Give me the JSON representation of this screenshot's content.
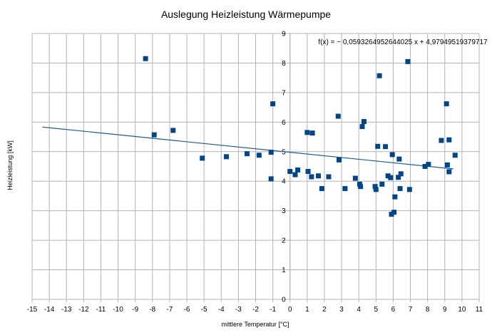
{
  "chart_data": {
    "type": "scatter",
    "title": "Auslegung Heizleistung Wärmepumpe",
    "xlabel": "mittlere Temperatur [°C]",
    "ylabel": "Heizleistung [kW]",
    "xlim": [
      -15,
      11
    ],
    "ylim": [
      0,
      9
    ],
    "grid": true,
    "x_ticks": [
      -15,
      -14,
      -13,
      -12,
      -11,
      -10,
      -9,
      -8,
      -7,
      -6,
      -5,
      -4,
      -3,
      -2,
      -1,
      0,
      1,
      2,
      3,
      4,
      5,
      6,
      7,
      8,
      9,
      10,
      11
    ],
    "y_ticks": [
      0,
      1,
      2,
      3,
      4,
      5,
      6,
      7,
      8,
      9
    ],
    "trendline": {
      "label": "f(x) = − 0,0593264952644025 x + 4,97949519379717",
      "slope": -0.0593264952644025,
      "intercept": 4.97949519379717,
      "x_range": [
        -14.4,
        9.5
      ]
    },
    "series": [
      {
        "name": "Heizleistung",
        "points": [
          [
            -8.4,
            8.15
          ],
          [
            -7.9,
            5.57
          ],
          [
            -6.8,
            5.72
          ],
          [
            -5.1,
            4.78
          ],
          [
            -3.7,
            4.83
          ],
          [
            -2.5,
            4.93
          ],
          [
            -1.8,
            4.88
          ],
          [
            -1.1,
            4.98
          ],
          [
            -1.1,
            4.08
          ],
          [
            -1.0,
            6.62
          ],
          [
            0.0,
            4.33
          ],
          [
            0.3,
            4.22
          ],
          [
            0.45,
            4.38
          ],
          [
            1.0,
            5.65
          ],
          [
            1.05,
            4.33
          ],
          [
            1.25,
            4.15
          ],
          [
            1.3,
            5.63
          ],
          [
            1.65,
            4.18
          ],
          [
            1.85,
            3.75
          ],
          [
            2.25,
            4.15
          ],
          [
            2.8,
            6.2
          ],
          [
            2.85,
            4.72
          ],
          [
            3.2,
            3.75
          ],
          [
            3.8,
            4.1
          ],
          [
            4.05,
            3.9
          ],
          [
            4.1,
            3.82
          ],
          [
            4.2,
            5.85
          ],
          [
            4.3,
            6.02
          ],
          [
            4.95,
            3.82
          ],
          [
            5.0,
            3.72
          ],
          [
            5.1,
            5.18
          ],
          [
            5.2,
            7.57
          ],
          [
            5.35,
            3.9
          ],
          [
            5.55,
            5.17
          ],
          [
            5.7,
            4.18
          ],
          [
            5.85,
            4.12
          ],
          [
            5.9,
            2.88
          ],
          [
            5.95,
            4.9
          ],
          [
            6.05,
            2.95
          ],
          [
            6.1,
            3.47
          ],
          [
            6.3,
            4.13
          ],
          [
            6.35,
            4.75
          ],
          [
            6.4,
            3.75
          ],
          [
            6.45,
            4.25
          ],
          [
            6.85,
            8.05
          ],
          [
            6.95,
            3.72
          ],
          [
            7.85,
            4.5
          ],
          [
            8.05,
            4.57
          ],
          [
            8.8,
            5.38
          ],
          [
            9.1,
            6.62
          ],
          [
            9.15,
            4.55
          ],
          [
            9.25,
            5.4
          ],
          [
            9.25,
            4.32
          ],
          [
            9.6,
            4.88
          ]
        ]
      }
    ]
  }
}
